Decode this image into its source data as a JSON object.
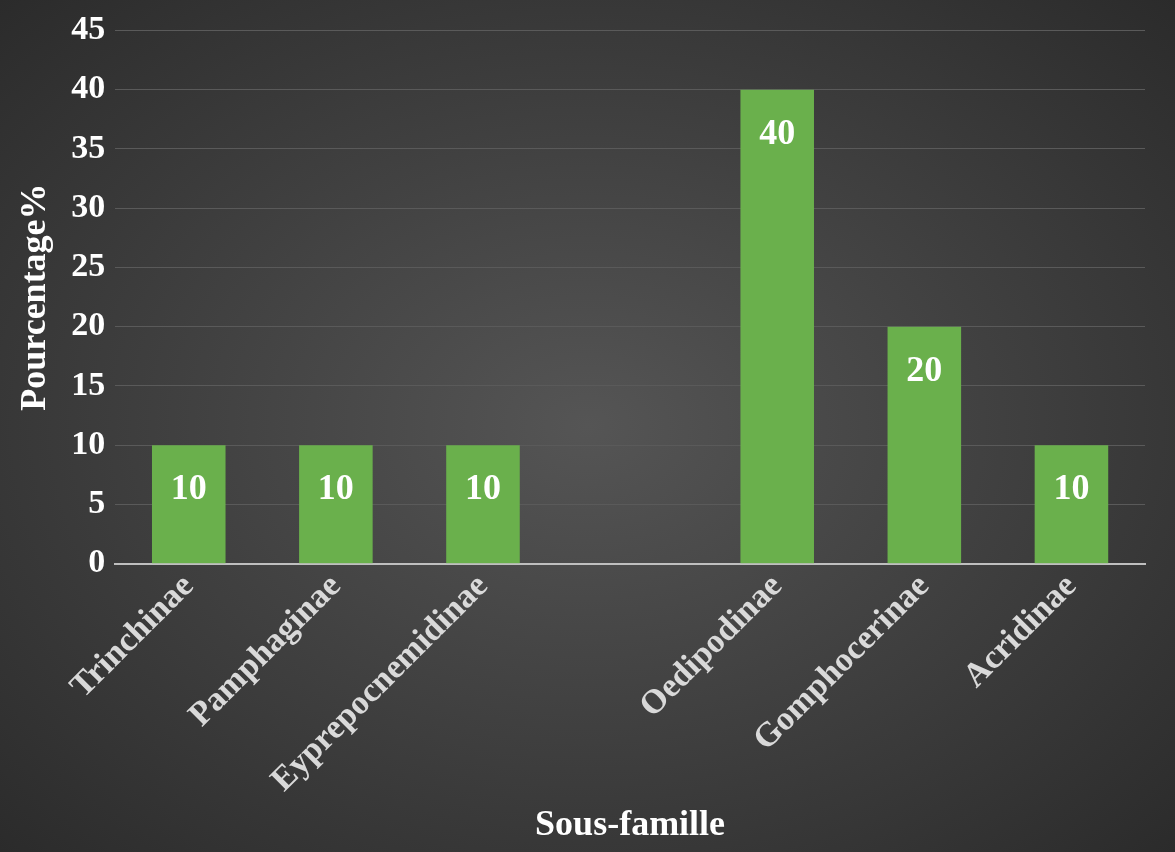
{
  "chart_data": {
    "type": "bar",
    "xlabel": "Sous-famille",
    "ylabel": "Pourcentage%",
    "categories": [
      "Trinchinae",
      "Pamphaginae",
      "Eyprepocnemidinae",
      null,
      "Oedipodinae",
      "Gomphocerinae",
      "Acridinae"
    ],
    "values": [
      10,
      10,
      10,
      null,
      40,
      20,
      10
    ],
    "color": "#6ab04c",
    "ylim": [
      0,
      45
    ],
    "yticks": [
      0,
      5,
      10,
      15,
      20,
      25,
      30,
      35,
      40,
      45
    ],
    "grid": "y",
    "data_labels": true
  }
}
